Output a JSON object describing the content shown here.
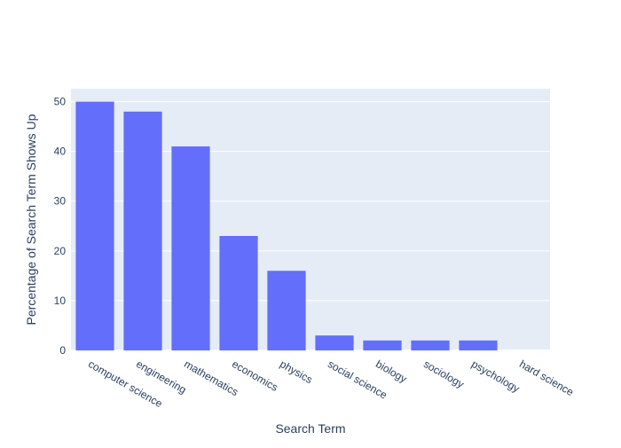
{
  "chart_data": {
    "type": "bar",
    "categories": [
      "computer science",
      "engineering",
      "mathematics",
      "economics",
      "physics",
      "social science",
      "biology",
      "sociology",
      "psychology",
      "hard science"
    ],
    "values": [
      50,
      48,
      41,
      23,
      16,
      3,
      2,
      2,
      2,
      0
    ],
    "xlabel": "Search Term",
    "ylabel": "Percentage of Search Term Shows Up",
    "ylim": [
      0,
      52.6
    ],
    "yticks": [
      0,
      10,
      20,
      30,
      40,
      50
    ],
    "grid": true,
    "colors": {
      "bar": "#636efa",
      "plot_background": "#e5ecf6",
      "gridline": "#ffffff",
      "text": "#2a3f5f"
    }
  }
}
